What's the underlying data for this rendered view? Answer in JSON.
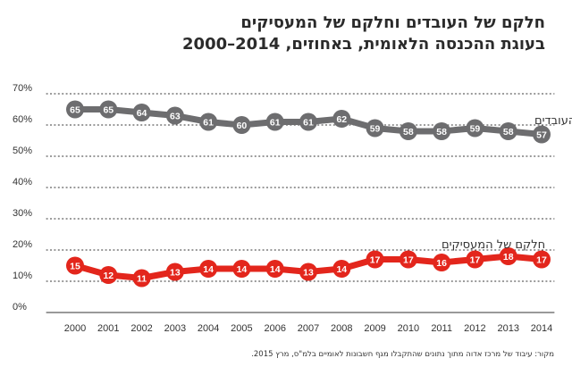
{
  "title": {
    "line1": "חלקם של העובדים וחלקם של המעסיקים",
    "line2": "בעוגת ההכנסה הלאומית, באחוזים, 2014–2000"
  },
  "source": "מקור: עיבוד של מרכז אדוה מתוך נתונים שהתקבלו מגף חשבונות לאומיים בלמ\"ס, מרץ 2015.",
  "colors": {
    "workers": "#6d6d6f",
    "employers": "#e3261c",
    "grid": "#333333",
    "axis_text": "#333333"
  },
  "chart_data": {
    "type": "line",
    "title": "חלקם של העובדים וחלקם של המעסיקים בעוגת ההכנסה הלאומית, באחוזים, 2014–2000",
    "xlabel": "",
    "ylabel": "",
    "ylim": [
      0,
      70
    ],
    "y_ticks": [
      "0%",
      "10%",
      "20%",
      "30%",
      "40%",
      "50%",
      "60%",
      "70%"
    ],
    "y_tick_values": [
      0,
      10,
      20,
      30,
      40,
      50,
      60,
      70
    ],
    "x": [
      "2000",
      "2001",
      "2002",
      "2003",
      "2004",
      "2005",
      "2006",
      "2007",
      "2008",
      "2009",
      "2010",
      "2011",
      "2012",
      "2013",
      "2014"
    ],
    "grid": true,
    "series": [
      {
        "name": "חלקם של העובדים",
        "color": "#6d6d6f",
        "values": [
          65,
          65,
          64,
          63,
          61,
          60,
          61,
          61,
          62,
          59,
          58,
          58,
          59,
          58,
          57
        ],
        "labels": [
          "65",
          "65",
          "64",
          "63",
          "61",
          "60",
          "61",
          "61",
          "62",
          "59",
          "58",
          "58",
          "59",
          "58",
          "57"
        ],
        "label_offset": [
          0,
          1,
          0,
          0,
          0,
          0,
          0,
          0,
          0,
          0,
          0,
          0,
          0,
          0,
          0
        ]
      },
      {
        "name": "חלקם של המעסיקים",
        "color": "#e3261c",
        "values": [
          15,
          12,
          11,
          13,
          14,
          14,
          14,
          13,
          14,
          17,
          17,
          16,
          17,
          18,
          17
        ],
        "labels": [
          "15",
          "12",
          "11",
          "13",
          "14",
          "14",
          "14",
          "13",
          "14",
          "17",
          "17",
          "16",
          "17",
          "18",
          "17"
        ],
        "label_offset": [
          0,
          0,
          -1,
          0,
          0,
          0,
          0,
          0,
          0,
          0,
          0,
          0,
          0,
          0,
          0
        ]
      }
    ]
  }
}
